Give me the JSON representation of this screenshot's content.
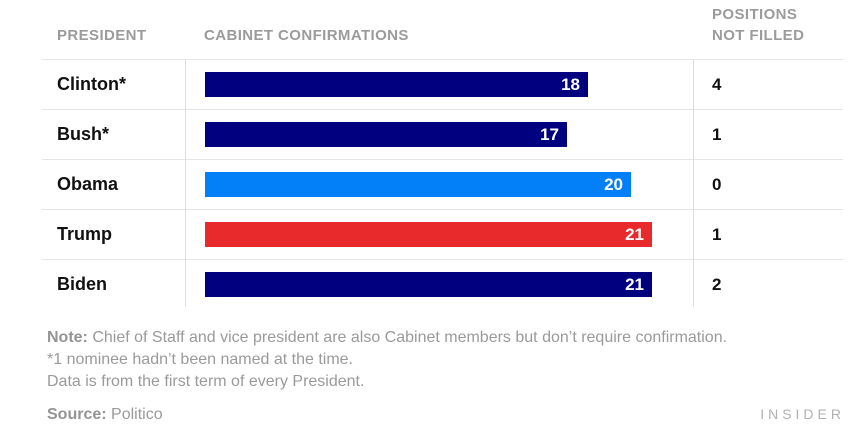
{
  "header": {
    "president": "PRESIDENT",
    "confirmations": "CABINET CONFIRMATIONS",
    "not_filled_line1": "POSITIONS",
    "not_filled_line2": "NOT FILLED"
  },
  "chart_data": {
    "type": "bar",
    "orientation": "horizontal",
    "categories": [
      "Clinton*",
      "Bush*",
      "Obama",
      "Trump",
      "Biden"
    ],
    "series": [
      {
        "name": "Cabinet confirmations",
        "values": [
          18,
          17,
          20,
          21,
          21
        ]
      },
      {
        "name": "Positions not filled",
        "values": [
          4,
          1,
          0,
          1,
          2
        ]
      }
    ],
    "bar_colors": [
      "#010180",
      "#010180",
      "#0380f8",
      "#e92a2c",
      "#010180"
    ],
    "value_label_color": "#ffffff",
    "xlim": [
      0,
      21
    ],
    "grid": false,
    "legend": false
  },
  "note": {
    "label": "Note:",
    "line1": " Chief of Staff and vice president are also Cabinet members but don’t require confirmation.",
    "line2": "*1 nominee hadn’t been named at the time.",
    "line3": "Data is from the first term of every President."
  },
  "source": {
    "label": "Source:",
    "value": " Politico"
  },
  "brand": "INSIDER"
}
